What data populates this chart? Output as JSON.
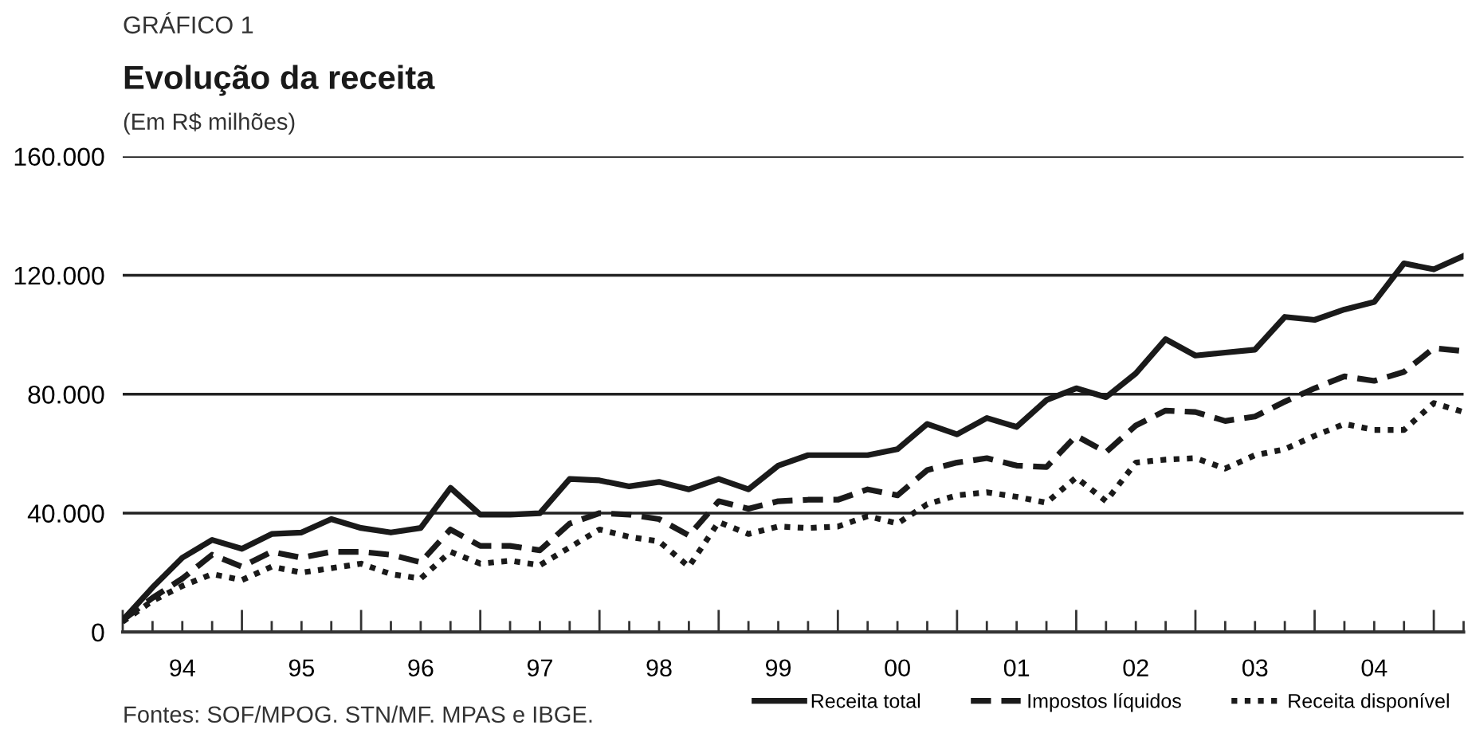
{
  "chart_data": {
    "type": "line",
    "title": "Evolução da receita",
    "subtitle": "(Em R$ milhões)",
    "annotations": [
      "GRÁFICO 1",
      "Fontes: SOF/MPOG. STN/MF. MPAS e IBGE."
    ],
    "categories": [
      null,
      null,
      "94",
      null,
      null,
      null,
      "95",
      null,
      null,
      null,
      "96",
      null,
      null,
      null,
      "97",
      null,
      null,
      null,
      "98",
      null,
      null,
      null,
      "99",
      null,
      null,
      null,
      "00",
      null,
      null,
      null,
      "01",
      null,
      null,
      null,
      "02",
      null,
      null,
      null,
      "03",
      null,
      null,
      null,
      "04",
      null,
      null,
      null
    ],
    "series": [
      {
        "name": "Receita total",
        "color": "#1a1a1a",
        "line_style": "solid",
        "values": [
          4000,
          15000,
          25000,
          31000,
          28000,
          33000,
          33500,
          38000,
          35000,
          33500,
          35000,
          48500,
          39500,
          39500,
          40000,
          51500,
          51000,
          49000,
          50500,
          48000,
          51500,
          48000,
          56000,
          59500,
          59500,
          59500,
          61500,
          70000,
          66500,
          72000,
          69000,
          78000,
          82000,
          79000,
          87000,
          98500,
          93000,
          94000,
          95000,
          106000,
          105000,
          108500,
          111000,
          124000,
          122000,
          126500
        ]
      },
      {
        "name": "Impostos líquidos",
        "color": "#1a1a1a",
        "line_style": "dashed",
        "values": [
          4000,
          11500,
          18000,
          26000,
          22000,
          27000,
          25000,
          27000,
          27000,
          26000,
          23500,
          34500,
          29000,
          29000,
          27500,
          36500,
          40000,
          39500,
          38000,
          32500,
          44000,
          41500,
          44000,
          44500,
          44500,
          48000,
          46000,
          54500,
          57000,
          58500,
          56000,
          55500,
          66000,
          60500,
          69500,
          74500,
          74000,
          71000,
          72500,
          77500,
          82000,
          86000,
          84500,
          87500,
          95500,
          94500
        ]
      },
      {
        "name": "Receita disponível",
        "color": "#1a1a1a",
        "line_style": "dotted",
        "values": [
          3500,
          10500,
          15500,
          19500,
          17500,
          22000,
          20000,
          21500,
          23000,
          19500,
          18000,
          27000,
          23000,
          24000,
          22500,
          28500,
          34500,
          32000,
          30500,
          22000,
          37000,
          33000,
          35500,
          35000,
          35500,
          39000,
          36500,
          43000,
          46000,
          47000,
          45500,
          43500,
          52000,
          44000,
          57000,
          58000,
          58500,
          55000,
          59500,
          61500,
          66000,
          70000,
          68000,
          68000,
          77000,
          74000
        ]
      }
    ],
    "ylim": [
      0,
      160000
    ],
    "yticks": [
      0,
      {
        "value": 40000,
        "label": "40.000"
      },
      {
        "value": 80000,
        "label": "80.000"
      },
      {
        "value": 120000,
        "label": "120.000"
      },
      {
        "value": 160000,
        "label": "160.000"
      }
    ],
    "grid": "y",
    "legend": "bottom right"
  }
}
